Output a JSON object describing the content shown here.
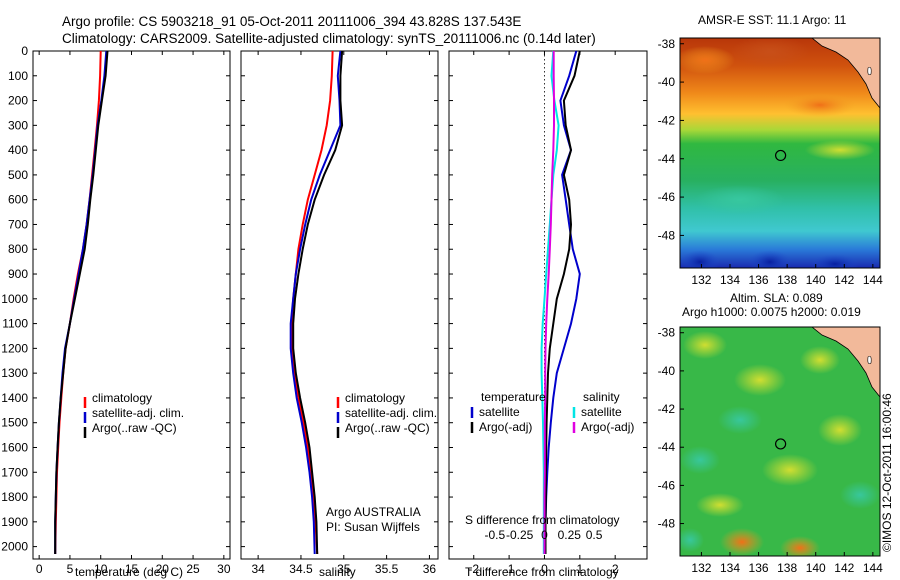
{
  "header": {
    "line1": "Argo profile: CS 5903218_91 05-Oct-2011 20111006_394 43.828S 137.543E",
    "line2": "Climatology: CARS2009. Satellite-adjusted climatology: synTS_20111006.nc (0.14d later)"
  },
  "colors": {
    "climatology": "#ff0000",
    "satellite": "#0000cc",
    "argo": "#000000",
    "satellite_s": "#00e5e5",
    "argo_s": "#e000e0"
  },
  "chart_data": [
    {
      "type": "line",
      "xlabel": "temperature (deg C)",
      "ylim": [
        2050,
        0
      ],
      "xlim": [
        -1,
        31
      ],
      "xticks": [
        "0",
        "5",
        "10",
        "15",
        "20",
        "25",
        "30"
      ],
      "yticks": [
        "0",
        "100",
        "200",
        "300",
        "400",
        "500",
        "600",
        "700",
        "800",
        "900",
        "1000",
        "1100",
        "1200",
        "1300",
        "1400",
        "1500",
        "1600",
        "1700",
        "1800",
        "1900",
        "2000"
      ],
      "legend": [
        "climatology",
        "satellite-adj. clim.",
        "Argo(..raw -QC)"
      ],
      "series": [
        {
          "name": "climatology",
          "x": [
            10.0,
            9.9,
            9.7,
            9.4,
            9.0,
            8.6,
            8.2,
            7.7,
            7.1,
            6.3,
            5.6,
            5.0,
            4.3,
            3.9,
            3.6,
            3.3,
            3.1,
            2.9,
            2.8,
            2.7,
            2.6
          ],
          "y": [
            0,
            100,
            200,
            300,
            400,
            500,
            600,
            700,
            800,
            900,
            1000,
            1100,
            1200,
            1300,
            1400,
            1500,
            1600,
            1700,
            1800,
            1900,
            2030
          ]
        },
        {
          "name": "satellite-adj. clim.",
          "x": [
            10.9,
            10.6,
            10.1,
            9.5,
            9.1,
            8.7,
            8.2,
            7.7,
            7.1,
            6.4,
            5.7,
            5.0,
            4.2,
            3.8,
            3.5,
            3.2,
            3.0,
            2.8,
            2.7,
            2.6,
            2.6
          ],
          "y": [
            0,
            100,
            200,
            300,
            400,
            500,
            600,
            700,
            800,
            900,
            1000,
            1100,
            1200,
            1300,
            1400,
            1500,
            1600,
            1700,
            1800,
            1900,
            2030
          ]
        },
        {
          "name": "Argo(..raw -QC)",
          "x": [
            11.1,
            10.8,
            10.2,
            9.6,
            9.2,
            8.8,
            8.3,
            7.9,
            7.4,
            6.6,
            5.8,
            5.0,
            4.3,
            3.9,
            3.5,
            3.2,
            3.0,
            2.8,
            2.7,
            2.6,
            2.6
          ],
          "y": [
            0,
            100,
            200,
            300,
            400,
            500,
            600,
            700,
            800,
            900,
            1000,
            1100,
            1200,
            1300,
            1400,
            1500,
            1600,
            1700,
            1800,
            1900,
            2030
          ]
        }
      ]
    },
    {
      "type": "line",
      "xlabel": "salinity",
      "ylim": [
        2050,
        0
      ],
      "xlim": [
        33.8,
        36.1
      ],
      "xticks": [
        "34",
        "34.5",
        "35",
        "35.5",
        "36"
      ],
      "legend": [
        "climatology",
        "satellite-adj. clim.",
        "Argo(..raw -QC)"
      ],
      "annotation": [
        "Argo AUSTRALIA",
        "PI: Susan Wijffels"
      ],
      "series": [
        {
          "name": "climatology",
          "x": [
            34.87,
            34.86,
            34.84,
            34.8,
            34.74,
            34.66,
            34.58,
            34.52,
            34.47,
            34.44,
            34.41,
            34.39,
            34.39,
            34.42,
            34.47,
            34.53,
            34.58,
            34.62,
            34.65,
            34.67,
            34.69
          ],
          "y": [
            0,
            100,
            200,
            300,
            400,
            500,
            600,
            700,
            800,
            900,
            1000,
            1100,
            1200,
            1300,
            1400,
            1500,
            1600,
            1700,
            1800,
            1900,
            2030
          ]
        },
        {
          "name": "satellite-adj. clim.",
          "x": [
            34.96,
            34.93,
            34.95,
            34.96,
            34.84,
            34.72,
            34.62,
            34.55,
            34.49,
            34.44,
            34.41,
            34.38,
            34.38,
            34.41,
            34.45,
            34.51,
            34.56,
            34.6,
            34.63,
            34.65,
            34.66
          ],
          "y": [
            0,
            100,
            200,
            300,
            400,
            500,
            600,
            700,
            800,
            900,
            1000,
            1100,
            1200,
            1300,
            1400,
            1500,
            1600,
            1700,
            1800,
            1900,
            2030
          ]
        },
        {
          "name": "Argo(..raw -QC)",
          "x": [
            34.98,
            34.96,
            34.96,
            34.98,
            34.9,
            34.77,
            34.66,
            34.58,
            34.52,
            34.47,
            34.43,
            34.41,
            34.41,
            34.44,
            34.49,
            34.55,
            34.6,
            34.63,
            34.66,
            34.68,
            34.69
          ],
          "y": [
            0,
            100,
            200,
            300,
            400,
            500,
            600,
            700,
            800,
            900,
            1000,
            1100,
            1200,
            1300,
            1400,
            1500,
            1600,
            1700,
            1800,
            1900,
            2030
          ]
        }
      ]
    },
    {
      "type": "line",
      "xlabel": "T difference from climatology",
      "top_xlabel": "S difference from climatology",
      "ylim": [
        2050,
        0
      ],
      "xlim": [
        -2.7,
        2.9
      ],
      "xticks": [
        "-2",
        "-1",
        "0",
        "1",
        "2"
      ],
      "top_ticks": [
        "-0.5",
        "-0.25",
        "0",
        "0.25",
        "0.5"
      ],
      "legend_temperature": [
        "temperature",
        "satellite",
        "Argo(-adj)"
      ],
      "legend_salinity": [
        "salinity",
        "satellite",
        "Argo(-adj)"
      ],
      "series": [
        {
          "name": "satellite",
          "x": [
            0.9,
            0.7,
            0.45,
            0.55,
            0.75,
            0.5,
            0.6,
            0.7,
            0.8,
            1.0,
            0.9,
            0.75,
            0.55,
            0.35,
            0.25,
            0.18,
            0.12,
            0.08,
            0.05,
            0.03,
            0.02
          ],
          "y": [
            0,
            100,
            200,
            300,
            400,
            500,
            600,
            700,
            800,
            900,
            1000,
            1100,
            1200,
            1300,
            1400,
            1500,
            1600,
            1700,
            1800,
            1900,
            2030
          ]
        },
        {
          "name": "Argo(-adj)",
          "x": [
            1.0,
            0.85,
            0.55,
            0.6,
            0.75,
            0.55,
            0.7,
            0.75,
            0.7,
            0.55,
            0.35,
            0.25,
            0.15,
            0.1,
            0.08,
            0.06,
            0.05,
            0.04,
            0.04,
            0.03,
            0.03
          ],
          "y": [
            0,
            100,
            200,
            300,
            400,
            500,
            600,
            700,
            800,
            900,
            1000,
            1100,
            1200,
            1300,
            1400,
            1500,
            1600,
            1700,
            1800,
            1900,
            2030
          ]
        },
        {
          "name": "salinity satellite",
          "x": [
            0.25,
            0.2,
            0.28,
            0.4,
            0.35,
            0.25,
            0.2,
            0.15,
            0.1,
            0.05,
            0.0,
            -0.05,
            -0.08,
            -0.08,
            -0.06,
            -0.04,
            -0.03,
            -0.02,
            -0.02,
            -0.02,
            -0.02
          ],
          "y": [
            0,
            100,
            200,
            300,
            400,
            500,
            600,
            700,
            800,
            900,
            1000,
            1100,
            1200,
            1300,
            1400,
            1500,
            1600,
            1700,
            1800,
            1900,
            2030
          ]
        },
        {
          "name": "salinity Argo(-adj)",
          "x": [
            0.26,
            0.26,
            0.27,
            0.27,
            0.25,
            0.22,
            0.2,
            0.18,
            0.15,
            0.12,
            0.08,
            0.05,
            0.03,
            0.02,
            0.02,
            0.01,
            0.01,
            0.01,
            0.0,
            0.0,
            0.0
          ],
          "y": [
            0,
            100,
            200,
            300,
            400,
            500,
            600,
            700,
            800,
            900,
            1000,
            1100,
            1200,
            1300,
            1400,
            1500,
            1600,
            1700,
            1800,
            1900,
            2030
          ]
        }
      ]
    },
    {
      "type": "heatmap",
      "title": "AMSR-E SST: 11.1  Argo: 11",
      "xlim": [
        130.5,
        144.5
      ],
      "ylim": [
        -49.7,
        -37.7
      ],
      "xticks": [
        "132",
        "134",
        "136",
        "138",
        "140",
        "142",
        "144"
      ],
      "yticks": [
        "-38",
        "-40",
        "-42",
        "-44",
        "-46",
        "-48"
      ],
      "argo_position": [
        137.543,
        -43.828
      ]
    },
    {
      "type": "heatmap",
      "title": "Altim. SLA: 0.089",
      "subtitle": "Argo h1000: 0.0075 h2000: 0.019",
      "xlim": [
        130.5,
        144.5
      ],
      "ylim": [
        -49.7,
        -37.7
      ],
      "xticks": [
        "132",
        "134",
        "136",
        "138",
        "140",
        "142",
        "144"
      ],
      "yticks": [
        "-38",
        "-40",
        "-42",
        "-44",
        "-46",
        "-48"
      ],
      "argo_position": [
        137.543,
        -43.828
      ]
    }
  ],
  "footer": {
    "stamp": "©IMOS 12-Oct-2011 16:00:46"
  }
}
